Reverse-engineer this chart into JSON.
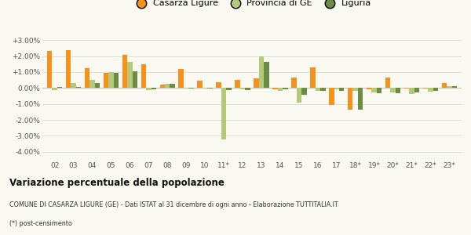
{
  "categories": [
    "02",
    "03",
    "04",
    "05",
    "06",
    "07",
    "08",
    "09",
    "10",
    "11*",
    "12",
    "13",
    "14",
    "15",
    "16",
    "17",
    "18*",
    "19*",
    "20*",
    "21*",
    "22*",
    "23*"
  ],
  "casarza": [
    2.3,
    2.35,
    1.25,
    0.95,
    2.1,
    1.5,
    0.2,
    1.2,
    0.45,
    0.35,
    0.5,
    0.6,
    -0.1,
    0.65,
    1.3,
    -1.05,
    -1.35,
    -0.1,
    0.65,
    -0.05,
    -0.05,
    0.3
  ],
  "provincia": [
    -0.15,
    0.3,
    0.5,
    1.0,
    1.65,
    -0.15,
    0.25,
    -0.05,
    -0.05,
    -3.2,
    -0.1,
    2.0,
    -0.2,
    -0.9,
    -0.2,
    -0.1,
    -0.2,
    -0.3,
    -0.3,
    -0.4,
    -0.25,
    0.1
  ],
  "liguria": [
    0.05,
    0.05,
    0.3,
    0.95,
    1.05,
    -0.1,
    0.25,
    -0.05,
    -0.05,
    -0.15,
    -0.15,
    1.65,
    -0.1,
    -0.45,
    -0.2,
    -0.2,
    -1.35,
    -0.35,
    -0.35,
    -0.3,
    -0.2,
    0.1
  ],
  "color_casarza": "#f5921e",
  "color_provincia": "#b5c97a",
  "color_liguria": "#6b8c42",
  "ylim_min": -4.5,
  "ylim_max": 3.6,
  "yticks": [
    -4.0,
    -3.0,
    -2.0,
    -1.0,
    0.0,
    1.0,
    2.0,
    3.0
  ],
  "title": "Variazione percentuale della popolazione",
  "subtitle": "COMUNE DI CASARZA LIGURE (GE) - Dati ISTAT al 31 dicembre di ogni anno - Elaborazione TUTTITALIA.IT",
  "footnote": "(*) post-censimento",
  "legend_labels": [
    "Casarza Ligure",
    "Provincia di GE",
    "Liguria"
  ],
  "bg_color": "#f9f9f2",
  "grid_color": "#e0e0d0"
}
